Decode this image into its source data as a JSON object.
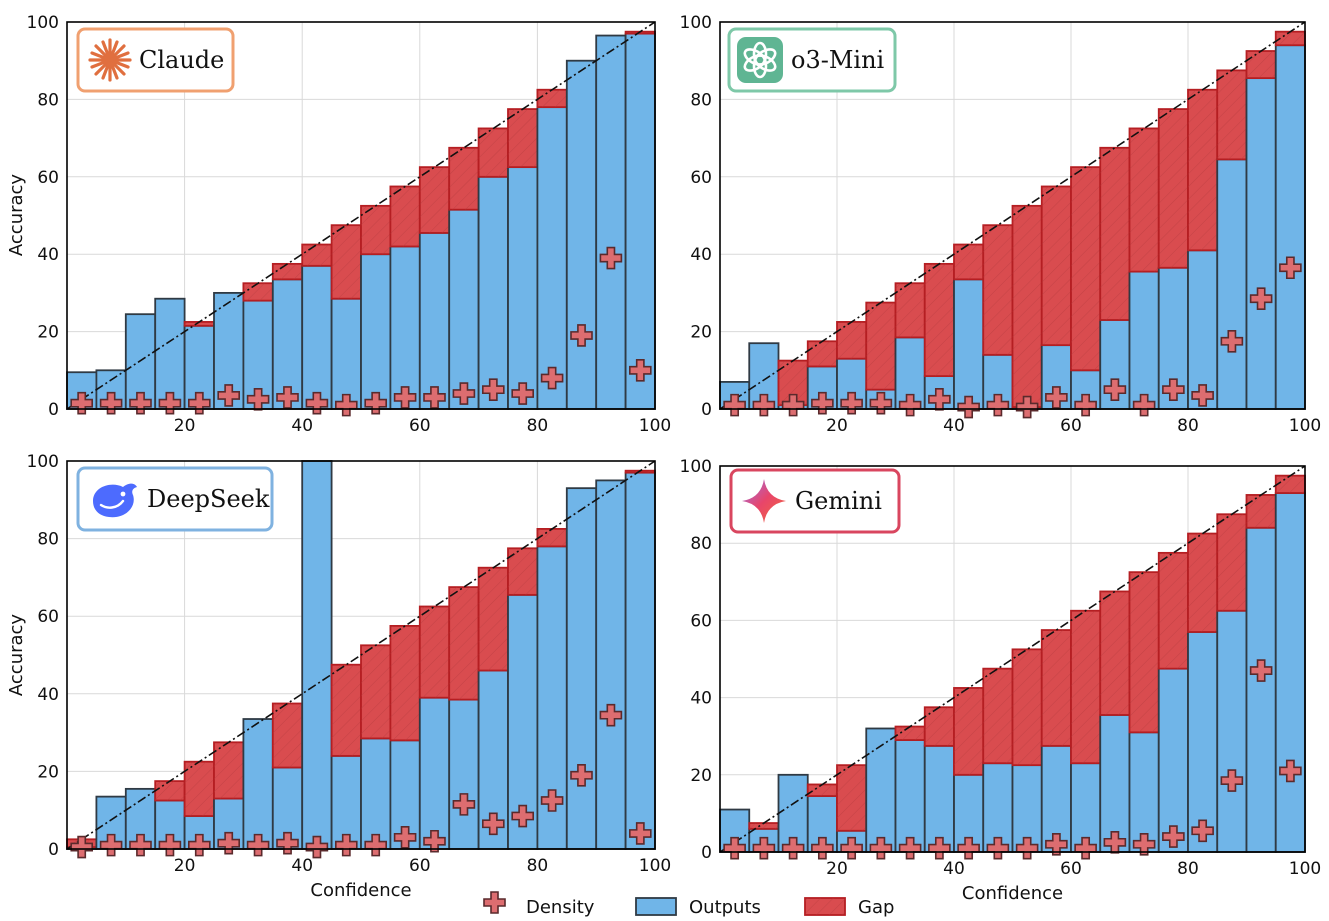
{
  "legend": {
    "density": "Density",
    "outputs": "Outputs",
    "gap": "Gap"
  },
  "colors": {
    "outputs": "#70b5e8",
    "gap": "#d94c4f",
    "density": "#dd6d70",
    "claude": "#f0a070",
    "o3": "#7ec8a8",
    "deepseek": "#7fb2e0",
    "gemini": "#d9465f"
  },
  "chart_data": [
    {
      "type": "bar",
      "title": "Claude",
      "logo_icon": "claude-starburst-icon",
      "xlabel": "",
      "ylabel": "Accuracy",
      "xlim": [
        0,
        100
      ],
      "ylim": [
        0,
        100
      ],
      "xticks": [
        20,
        40,
        60,
        80,
        100
      ],
      "yticks": [
        0,
        20,
        40,
        60,
        80,
        100
      ],
      "bin_width": 5,
      "bin_centers": [
        2.5,
        7.5,
        12.5,
        17.5,
        22.5,
        27.5,
        32.5,
        37.5,
        42.5,
        47.5,
        52.5,
        57.5,
        62.5,
        67.5,
        72.5,
        77.5,
        82.5,
        87.5,
        92.5,
        97.5
      ],
      "series": [
        {
          "name": "Outputs",
          "values": [
            9.5,
            10,
            24.5,
            28.5,
            21.5,
            30,
            28,
            33.5,
            37,
            28.5,
            40,
            42,
            45.5,
            51.5,
            60,
            62.5,
            78,
            90,
            96.5,
            97
          ]
        },
        {
          "name": "Density",
          "values": [
            1.5,
            1.5,
            1.5,
            1.5,
            1.5,
            3.5,
            2.5,
            3,
            1.5,
            1,
            1.5,
            3,
            3,
            4,
            5,
            4,
            8,
            19,
            39,
            10
          ]
        }
      ]
    },
    {
      "type": "bar",
      "title": "o3-Mini",
      "logo_icon": "openai-knot-icon",
      "xlabel": "",
      "ylabel": "",
      "xlim": [
        0,
        100
      ],
      "ylim": [
        0,
        100
      ],
      "xticks": [
        20,
        40,
        60,
        80,
        100
      ],
      "yticks": [
        0,
        20,
        40,
        60,
        80,
        100
      ],
      "bin_width": 5,
      "bin_centers": [
        2.5,
        7.5,
        12.5,
        17.5,
        22.5,
        27.5,
        32.5,
        37.5,
        42.5,
        47.5,
        52.5,
        57.5,
        62.5,
        67.5,
        72.5,
        77.5,
        82.5,
        87.5,
        92.5,
        97.5
      ],
      "series": [
        {
          "name": "Outputs",
          "values": [
            7,
            17,
            1,
            11,
            13,
            5,
            18.5,
            8.5,
            33.5,
            14,
            0.5,
            16.5,
            10,
            23,
            35.5,
            36.5,
            41,
            64.5,
            85.5,
            94
          ]
        },
        {
          "name": "Density",
          "values": [
            1,
            1,
            1,
            1.5,
            1.5,
            1.5,
            1,
            2.5,
            0.5,
            1,
            0.5,
            3,
            1,
            5,
            1,
            5,
            3.5,
            17.5,
            28.5,
            36.5
          ]
        }
      ]
    },
    {
      "type": "bar",
      "title": "DeepSeek",
      "logo_icon": "whale-icon",
      "xlabel": "Confidence",
      "ylabel": "Accuracy",
      "xlim": [
        0,
        100
      ],
      "ylim": [
        0,
        100
      ],
      "xticks": [
        20,
        40,
        60,
        80,
        100
      ],
      "yticks": [
        0,
        20,
        40,
        60,
        80,
        100
      ],
      "bin_width": 5,
      "bin_centers": [
        2.5,
        7.5,
        12.5,
        17.5,
        22.5,
        27.5,
        32.5,
        37.5,
        42.5,
        47.5,
        52.5,
        57.5,
        62.5,
        67.5,
        72.5,
        77.5,
        82.5,
        87.5,
        92.5,
        97.5
      ],
      "series": [
        {
          "name": "Outputs",
          "values": [
            0.5,
            13.5,
            15.5,
            12.5,
            8.5,
            13,
            33.5,
            21,
            100,
            24,
            28.5,
            28,
            39,
            38.5,
            46,
            65.5,
            78,
            93,
            95,
            97
          ]
        },
        {
          "name": "Density",
          "values": [
            0.5,
            1,
            1,
            1,
            1,
            1.5,
            1,
            1.5,
            0.5,
            1,
            1,
            3,
            2,
            11.5,
            6.5,
            8.5,
            12.5,
            19,
            34.5,
            4
          ]
        }
      ]
    },
    {
      "type": "bar",
      "title": "Gemini",
      "logo_icon": "gemini-sparkle-icon",
      "xlabel": "Confidence",
      "ylabel": "",
      "xlim": [
        0,
        100
      ],
      "ylim": [
        0,
        100
      ],
      "xticks": [
        20,
        40,
        60,
        80,
        100
      ],
      "yticks": [
        0,
        20,
        40,
        60,
        80,
        100
      ],
      "bin_width": 5,
      "bin_centers": [
        2.5,
        7.5,
        12.5,
        17.5,
        22.5,
        27.5,
        32.5,
        37.5,
        42.5,
        47.5,
        52.5,
        57.5,
        62.5,
        67.5,
        72.5,
        77.5,
        82.5,
        87.5,
        92.5,
        97.5
      ],
      "series": [
        {
          "name": "Outputs",
          "values": [
            11,
            6,
            20,
            14.5,
            5.5,
            32,
            29,
            27.5,
            20,
            23,
            22.5,
            27.5,
            23,
            35.5,
            31,
            47.5,
            57,
            62.5,
            84,
            93
          ]
        },
        {
          "name": "Density",
          "values": [
            1,
            1,
            1,
            1,
            1,
            1,
            1,
            1,
            1,
            1,
            1,
            2,
            1,
            2.5,
            2,
            4,
            5.5,
            18.5,
            47,
            21
          ]
        }
      ]
    }
  ]
}
